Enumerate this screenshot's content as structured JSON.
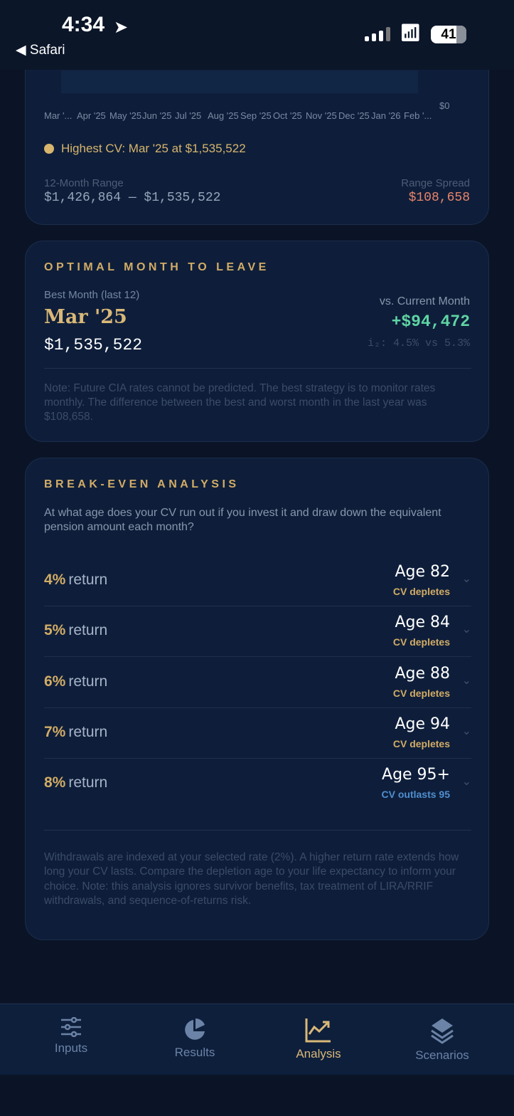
{
  "status_bar": {
    "time": "4:34",
    "back_label": "◀ Safari",
    "battery": "41"
  },
  "cv_chart": {
    "x_ticks": [
      "Mar '...",
      "Apr '25",
      "May '25",
      "Jun '25",
      "Jul '25",
      "Aug '25",
      "Sep '25",
      "Oct '25",
      "Nov '25",
      "Dec '25",
      "Jan '26",
      "Feb '..."
    ],
    "y_tick": "$0",
    "highest_label": "Highest CV: Mar '25 at $1,535,522",
    "range_label": "12-Month Range",
    "range_value": "$1,426,864 — $1,535,522",
    "spread_label": "Range Spread",
    "spread_value": "$108,658"
  },
  "optimal": {
    "title": "OPTIMAL MONTH TO LEAVE",
    "best_label": "Best Month (last 12)",
    "best_month": "Mar '25",
    "best_value": "$1,535,522",
    "vs_label": "vs. Current Month",
    "vs_value": "+$94,472",
    "rate_compare": "i₂: 4.5% vs 5.3%",
    "note": "Note: Future CIA rates cannot be predicted. The best strategy is to monitor rates monthly. The difference between the best and worst month in the last year was $108,658."
  },
  "breakeven": {
    "title": "BREAK-EVEN ANALYSIS",
    "question": "At what age does your CV run out if you invest it and draw down the equivalent pension amount each month?",
    "return_word": "return",
    "rows": [
      {
        "pct": "4%",
        "age": "Age 82",
        "status": "CV depletes",
        "color": "#d2ac66"
      },
      {
        "pct": "5%",
        "age": "Age 84",
        "status": "CV depletes",
        "color": "#d2ac66"
      },
      {
        "pct": "6%",
        "age": "Age 88",
        "status": "CV depletes",
        "color": "#d2ac66"
      },
      {
        "pct": "7%",
        "age": "Age 94",
        "status": "CV depletes",
        "color": "#d2ac66"
      },
      {
        "pct": "8%",
        "age": "Age 95+",
        "status": "CV outlasts 95",
        "color": "#4f8fd0"
      }
    ],
    "footnote": "Withdrawals are indexed at your selected rate (2%). A higher return rate extends how long your CV lasts. Compare the depletion age to your life expectancy to inform your choice. Note: this analysis ignores survivor benefits, tax treatment of LIRA/RRIF withdrawals, and sequence-of-returns risk."
  },
  "tabs": [
    {
      "label": "Inputs",
      "icon": "sliders-icon"
    },
    {
      "label": "Results",
      "icon": "pie-chart-icon"
    },
    {
      "label": "Analysis",
      "icon": "trending-chart-icon",
      "active": true
    },
    {
      "label": "Scenarios",
      "icon": "layers-icon"
    }
  ],
  "colors": {
    "accent": "#d2ac66",
    "positive": "#5fd4a4",
    "negative": "#e9846a",
    "background": "#0a1426",
    "card": "#0e1e3a"
  }
}
